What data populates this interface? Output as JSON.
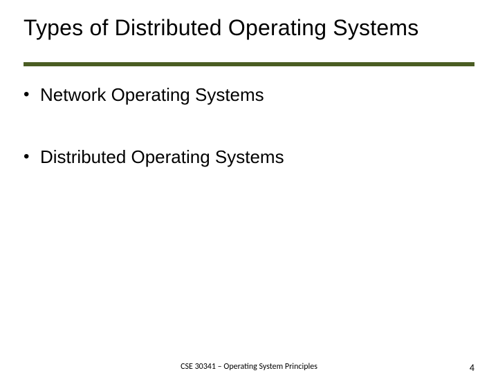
{
  "slide": {
    "title": "Types of Distributed Operating Systems",
    "divider_color": "#4a5d23",
    "background_color": "#ffffff",
    "bullets": [
      {
        "marker": "•",
        "text": "Network Operating Systems"
      },
      {
        "marker": "•",
        "text": "Distributed Operating Systems"
      }
    ],
    "footer": {
      "course_text": "CSE 30341 – Operating System Principles",
      "page_number": "4"
    },
    "typography": {
      "title_fontsize": 32,
      "bullet_fontsize": 26,
      "footer_fontsize": 12,
      "pagenum_fontsize": 14,
      "title_color": "#000000",
      "bullet_color": "#000000",
      "footer_color": "#000000"
    }
  }
}
